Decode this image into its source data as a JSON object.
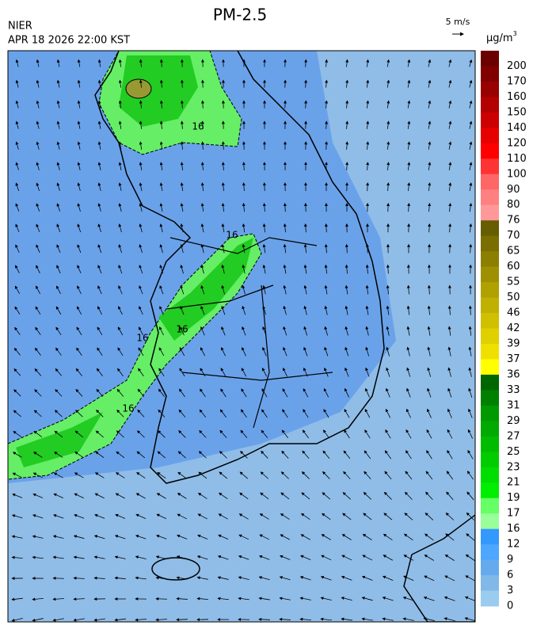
{
  "header": {
    "title": "PM-2.5",
    "agency": "NIER",
    "datetime": "APR 18 2026 22:00 KST"
  },
  "wind_key": {
    "label": "5 m/s"
  },
  "colorbar": {
    "unit": "μg/m",
    "unit_superscript": "3",
    "labels": [
      200,
      170,
      160,
      150,
      140,
      120,
      110,
      100,
      90,
      80,
      76,
      70,
      65,
      60,
      55,
      50,
      46,
      42,
      39,
      37,
      36,
      33,
      31,
      29,
      27,
      25,
      23,
      21,
      19,
      17,
      16,
      12,
      9,
      6,
      3,
      0
    ],
    "colors": [
      "#6b0000",
      "#800000",
      "#990000",
      "#b30000",
      "#cc0000",
      "#e60000",
      "#ff0000",
      "#ff3333",
      "#ff6666",
      "#ff8080",
      "#ff9999",
      "#665c00",
      "#7a6e00",
      "#8c7f00",
      "#9e9000",
      "#b0a000",
      "#c0b000",
      "#d0c000",
      "#e0d000",
      "#f0e000",
      "#ffff00",
      "#006600",
      "#008000",
      "#009900",
      "#00aa00",
      "#00bb00",
      "#00cc00",
      "#00dd00",
      "#00ee00",
      "#66ff66",
      "#99ff99",
      "#3399ff",
      "#4da6ff",
      "#66aaee",
      "#80b8e8",
      "#99ccee"
    ]
  },
  "contour_labels": [
    "16",
    "16",
    "16",
    "16",
    "16"
  ]
}
